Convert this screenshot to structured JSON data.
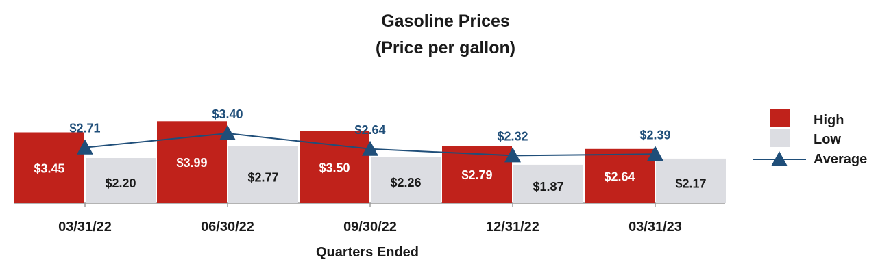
{
  "chart_data": {
    "type": "bar",
    "title": "Gasoline Prices",
    "subtitle": "(Price per gallon)",
    "xlabel": "Quarters Ended",
    "ylabel": "",
    "categories": [
      "03/31/22",
      "06/30/22",
      "09/30/22",
      "12/31/22",
      "03/31/23"
    ],
    "series": [
      {
        "name": "High",
        "kind": "bar",
        "color": "#c0221b",
        "label_color": "#ffffff",
        "values": [
          3.45,
          3.99,
          3.5,
          2.79,
          2.64
        ],
        "labels": [
          "$3.45",
          "$3.99",
          "$3.50",
          "$2.79",
          "$2.64"
        ]
      },
      {
        "name": "Low",
        "kind": "bar",
        "color": "#dcdde2",
        "label_color": "#1a1a1a",
        "values": [
          2.2,
          2.77,
          2.26,
          1.87,
          2.17
        ],
        "labels": [
          "$2.20",
          "$2.77",
          "$2.26",
          "$1.87",
          "$2.17"
        ]
      },
      {
        "name": "Average",
        "kind": "line",
        "color": "#1f4e79",
        "marker": "triangle",
        "values": [
          2.71,
          3.4,
          2.64,
          2.32,
          2.39
        ],
        "labels": [
          "$2.71",
          "$3.40",
          "$2.64",
          "$2.32",
          "$2.39"
        ]
      }
    ],
    "legend_position": "right",
    "grid": false
  }
}
